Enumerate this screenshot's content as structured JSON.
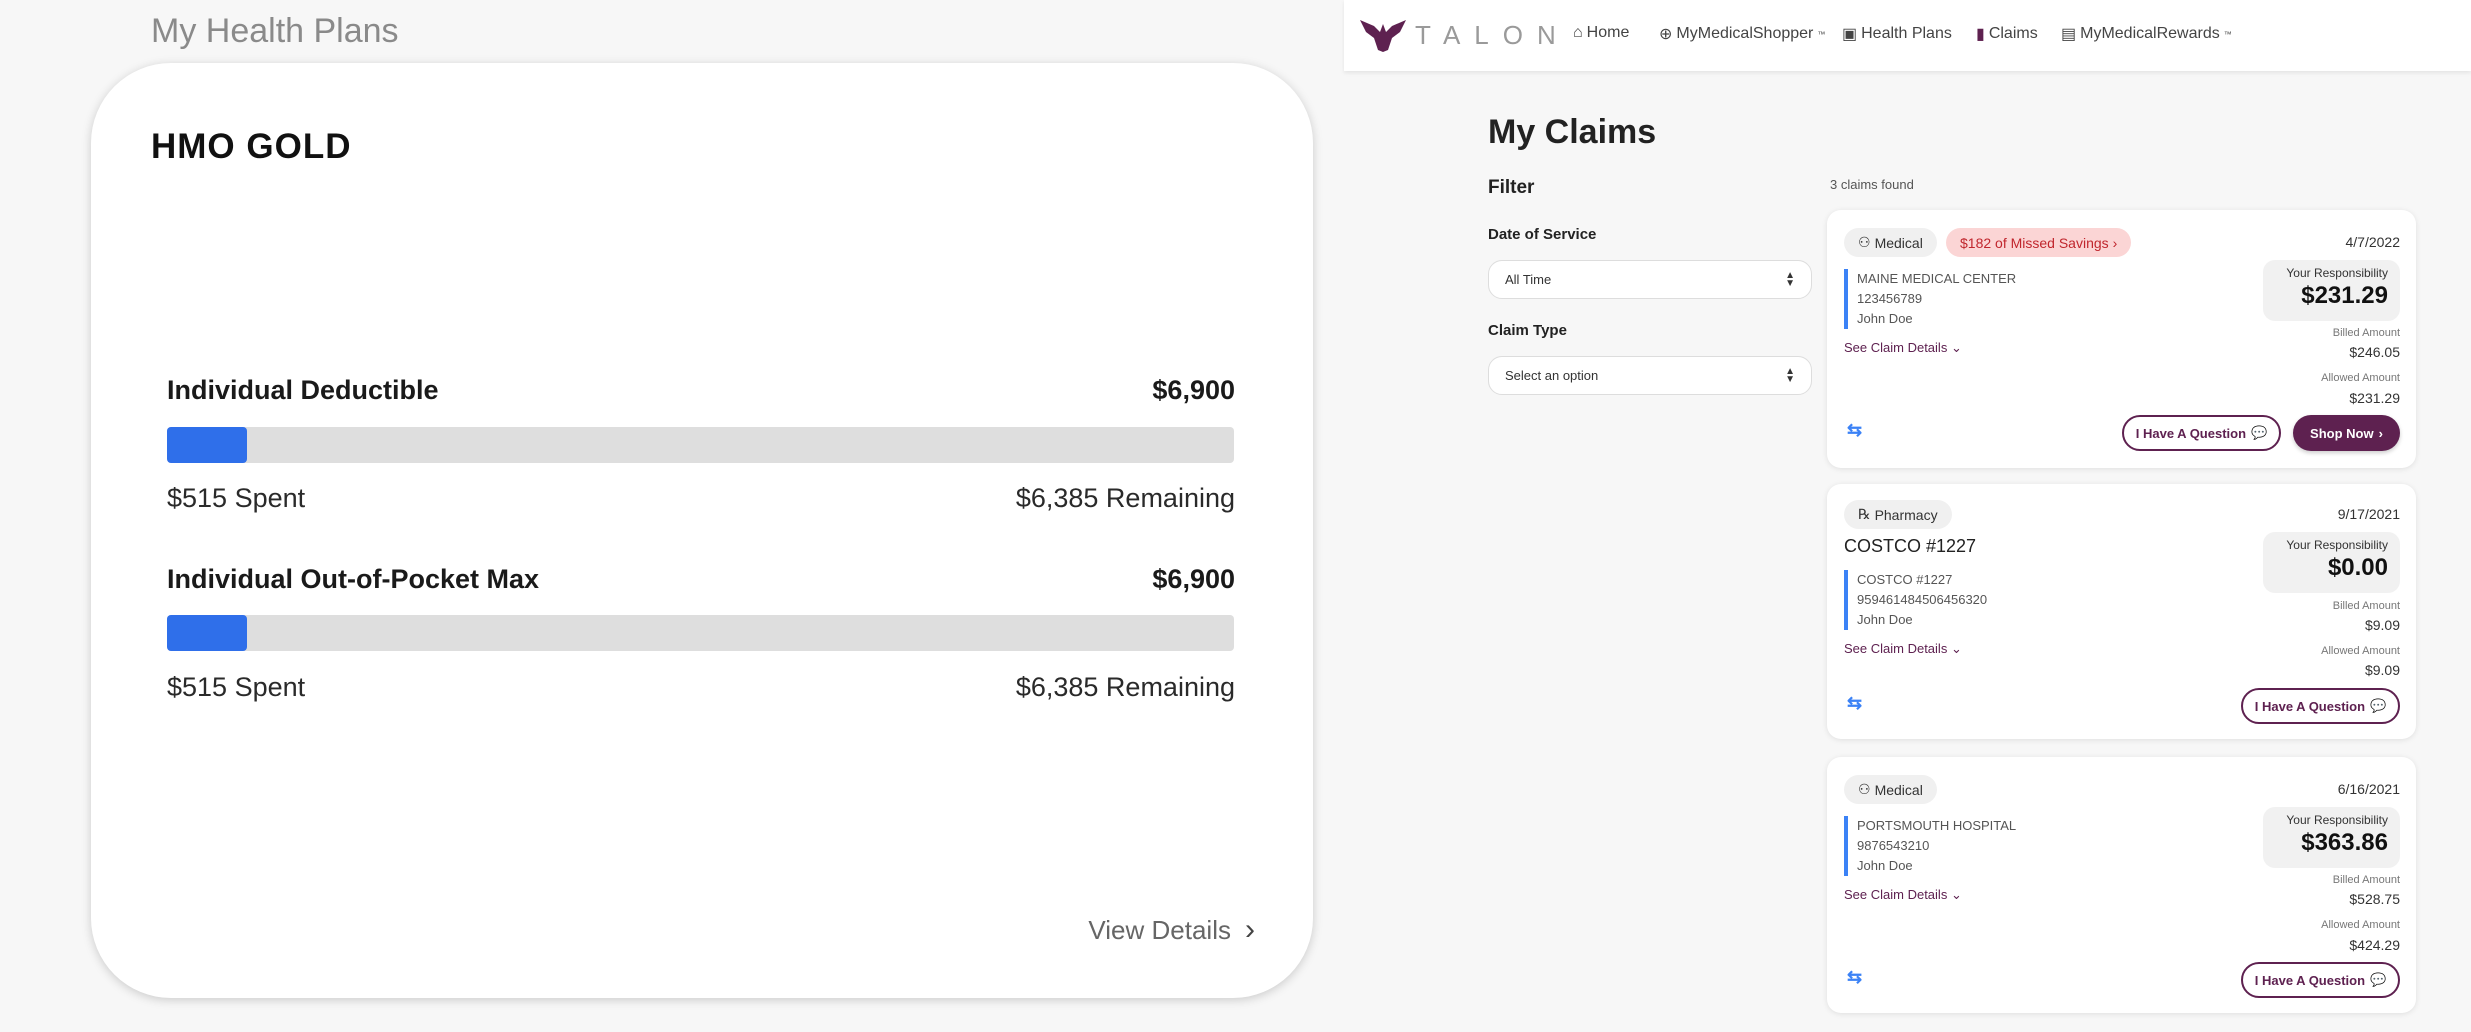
{
  "left_panel": {
    "title": "My Health Plans",
    "plan_name": "HMO GOLD",
    "metrics": [
      {
        "label": "Individual Deductible",
        "total": "$6,900",
        "spent": "$515 Spent",
        "remaining": "$6,385 Remaining",
        "progress_percent": 7.5
      },
      {
        "label": "Individual Out-of-Pocket Max",
        "total": "$6,900",
        "spent": "$515 Spent",
        "remaining": "$6,385 Remaining",
        "progress_percent": 7.5
      }
    ],
    "view_details": "View Details",
    "bar_color": "#2f6fea"
  },
  "nav": {
    "brand": "TALON",
    "items": [
      {
        "label": "Home",
        "icon": "home-icon"
      },
      {
        "label": "MyMedicalShopper",
        "tm": "™",
        "icon": "search-plus-icon"
      },
      {
        "label": "Health Plans",
        "icon": "id-card-icon"
      },
      {
        "label": "Claims",
        "icon": "document-icon"
      },
      {
        "label": "MyMedicalRewards",
        "tm": "™",
        "icon": "rewards-icon"
      }
    ]
  },
  "claims_page": {
    "title": "My Claims",
    "filter": {
      "heading": "Filter",
      "date_label": "Date of Service",
      "date_value": "All Time",
      "type_label": "Claim Type",
      "type_placeholder": "Select an option"
    },
    "count": "3 claims found",
    "resp_label": "Your Responsibility",
    "billed_label": "Billed Amount",
    "allowed_label": "Allowed Amount",
    "details_label": "See Claim Details",
    "question_label": "I Have A Question",
    "shop_label": "Shop Now",
    "accent": "#5e2150",
    "claims": [
      {
        "type": "Medical",
        "missed_savings": "$182 of Missed Savings",
        "date": "4/7/2022",
        "provider": "MAINE MEDICAL CENTER",
        "id": "123456789",
        "patient": "John Doe",
        "responsibility": "$231.29",
        "billed": "$246.05",
        "allowed": "$231.29"
      },
      {
        "type": "Pharmacy",
        "title": "COSTCO #1227",
        "date": "9/17/2021",
        "provider": "COSTCO #1227",
        "id": "959461484506456320",
        "patient": "John Doe",
        "responsibility": "$0.00",
        "billed": "$9.09",
        "allowed": "$9.09"
      },
      {
        "type": "Medical",
        "date": "6/16/2021",
        "provider": "PORTSMOUTH HOSPITAL",
        "id": "9876543210",
        "patient": "John Doe",
        "responsibility": "$363.86",
        "billed": "$528.75",
        "allowed": "$424.29"
      }
    ]
  }
}
